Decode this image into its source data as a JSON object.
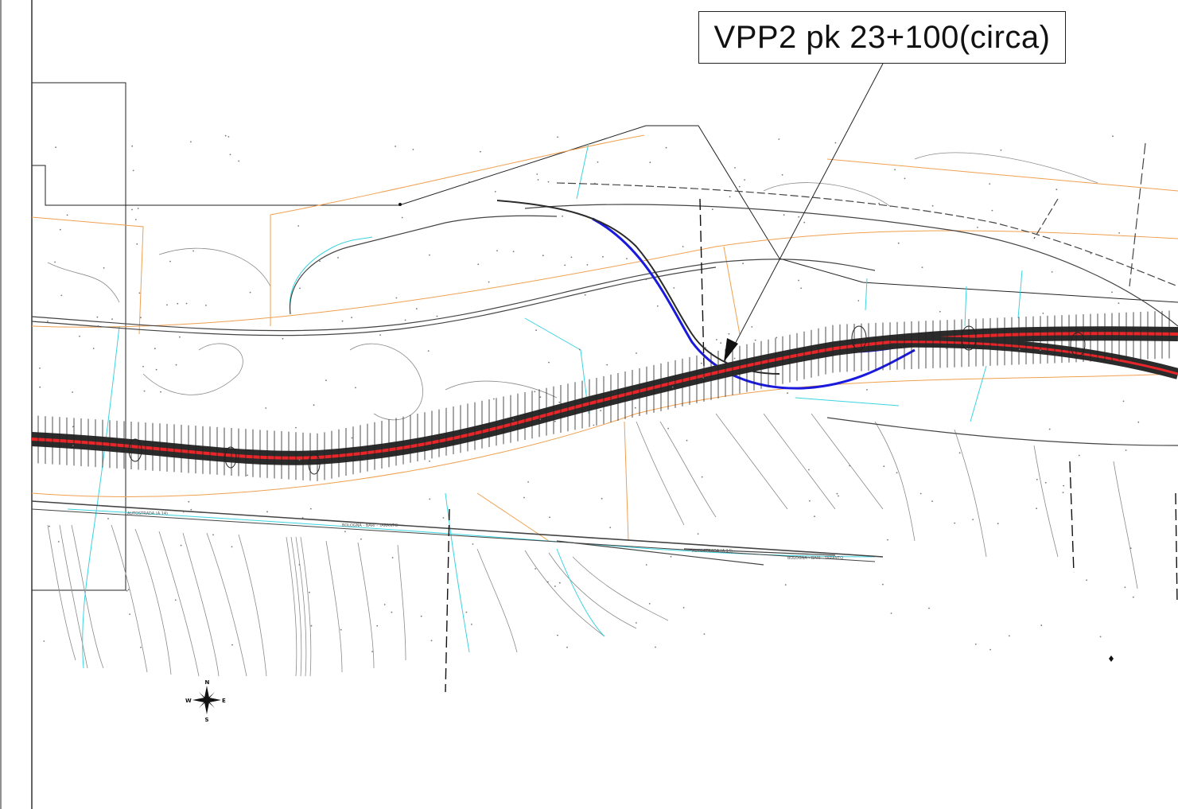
{
  "callout": {
    "label": "VPP2 pk 23+100(circa)"
  },
  "road_labels": {
    "autostrada_left": "AUTOSTRADA (A.14)",
    "autostrada_right": "AUTOSTRADA (A.14)",
    "bologna_bari_left": "BOLOGNA - BARI - TARANTO",
    "bologna_bari_right": "BOLOGNA - BARI - TARANTO"
  },
  "compass": {
    "north": "N",
    "south": "S",
    "east": "E",
    "west": "W"
  },
  "colors": {
    "alignment": "#e8262a",
    "road_band": "#2b2b2b",
    "ramp": "#1a1adf",
    "expropriation_line": "#f0a050",
    "watercourse": "#3ad4e0",
    "contour": "#8a8a8a",
    "boundary": "#222222"
  }
}
